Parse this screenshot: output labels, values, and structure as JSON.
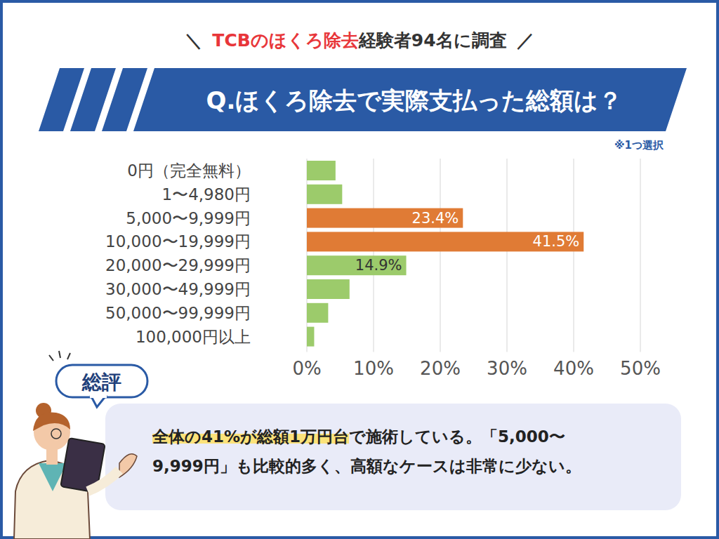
{
  "header": {
    "prefix": "＼",
    "highlight": "TCBのほくろ除去",
    "text": "経験者94名に調査",
    "suffix": "／"
  },
  "note": "※1つ選択",
  "summary": {
    "label": "総評",
    "highlight": "全体の41%が総額1万円台",
    "lines": [
      "で施術している。「5,000〜",
      "9,999円」も比較的多く、高額なケースは非常に少ない。"
    ]
  },
  "chart_data": {
    "type": "bar",
    "orientation": "horizontal",
    "title": "Q.ほくろ除去で実際支払った総額は？",
    "categories": [
      "0円（完全無料）",
      "1〜4,980円",
      "5,000〜9,999円",
      "10,000〜19,999円",
      "20,000〜29,999円",
      "30,000〜49,999円",
      "50,000〜99,999円",
      "100,000円以上"
    ],
    "values": [
      4.3,
      5.3,
      23.4,
      41.5,
      14.9,
      6.4,
      3.2,
      1.1
    ],
    "value_labels": [
      null,
      null,
      "23.4%",
      "41.5%",
      "14.9%",
      null,
      null,
      null
    ],
    "data_labels": true,
    "colors": [
      "#9ccb6b",
      "#9ccb6b",
      "#e07b35",
      "#e07b35",
      "#9ccb6b",
      "#9ccb6b",
      "#9ccb6b",
      "#9ccb6b"
    ],
    "xlim": [
      0,
      50
    ],
    "xticks": [
      {
        "value": 0,
        "label": "0%"
      },
      {
        "value": 10,
        "label": "10%"
      },
      {
        "value": 20,
        "label": "20%"
      },
      {
        "value": 30,
        "label": "30%"
      },
      {
        "value": 40,
        "label": "40%"
      },
      {
        "value": 50,
        "label": "50%"
      }
    ],
    "grid": true
  }
}
